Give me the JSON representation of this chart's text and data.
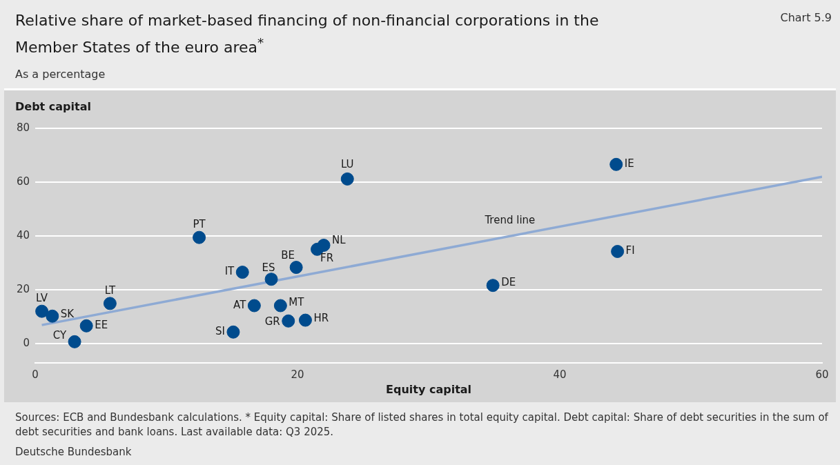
{
  "chart_data": {
    "type": "scatter",
    "title": "Relative share of market-based financing of non-financial corporations in the Member States of the euro area$^{*}$",
    "subtitle": "As a percentage",
    "xlabel": "Equity capital",
    "ylabel": "Debt capital",
    "annotations": [
      "Chart 5.9",
      "Sources: ECB and Bundesbank calculations. * Equity capital: Share of listed shares in total equity capital. Debt capital: Share of debt securities in the sum of debt securities and bank loans. Last available data: Q3 2025.",
      "Deutsche Bundesbank"
    ],
    "xlim": [
      0,
      60
    ],
    "xticks": [
      0,
      20,
      40,
      60
    ],
    "ylim": [
      -7,
      80
    ],
    "yticks": [
      0,
      20,
      40,
      60,
      80
    ],
    "grid": "y",
    "legend": false,
    "marker": "circle",
    "series": [
      {
        "color": "#004b8d",
        "x": [
          0.5,
          1.3,
          3.0,
          3.9,
          5.7,
          12.5,
          15.8,
          15.1,
          16.7,
          18.0,
          18.7,
          19.3,
          19.9,
          20.6,
          21.5,
          22.0,
          23.8,
          34.9,
          44.3,
          44.4
        ],
        "values": [
          12.1,
          10.3,
          0.8,
          6.7,
          15.0,
          39.5,
          26.6,
          4.4,
          14.2,
          24.0,
          14.2,
          8.5,
          28.4,
          8.8,
          35.1,
          36.6,
          61.2,
          21.7,
          66.6,
          34.3
        ],
        "value_labels": [
          "LV",
          "SK",
          "CY",
          "EE",
          "LT",
          "PT",
          "IT",
          "SI",
          "AT",
          "ES",
          "MT",
          "GR",
          "BE",
          "HR",
          "FR",
          "NL",
          "LU",
          "DE",
          "IE",
          "FI"
        ]
      },
      {
        "type": "line",
        "name": "Trend line",
        "color": "#8eaad4",
        "marker": "none",
        "x": [
          0.5,
          60
        ],
        "values": [
          7.0,
          62.0
        ]
      }
    ]
  }
}
